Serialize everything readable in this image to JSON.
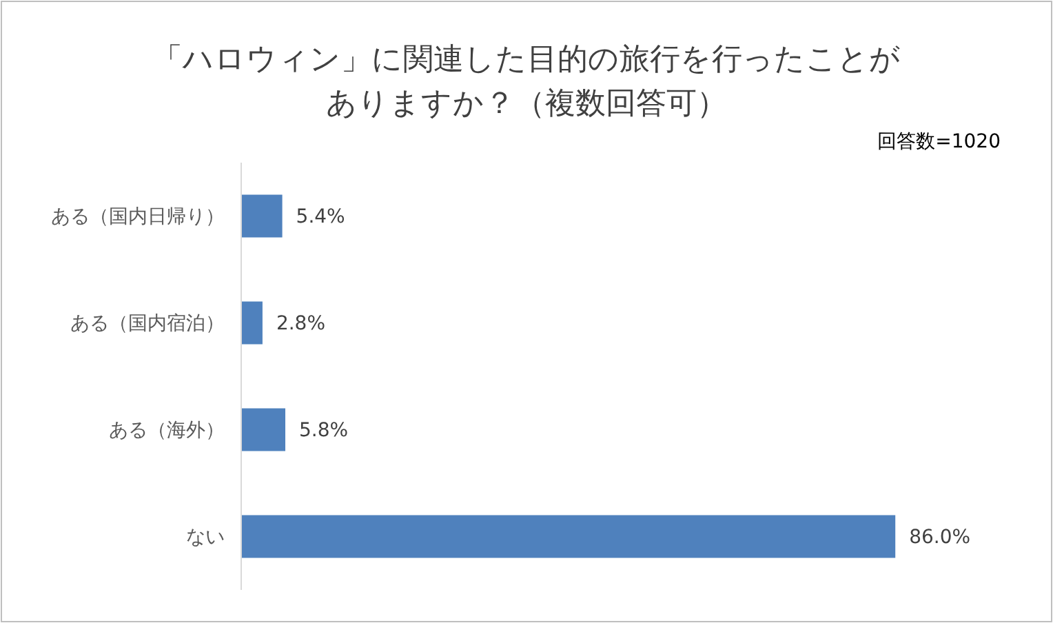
{
  "chart_data": {
    "type": "bar",
    "orientation": "horizontal",
    "title": "「ハロウィン」に関連した目的の旅行を行ったことがありますか？（複数回答可）",
    "categories": [
      "ある（国内日帰り）",
      "ある（国内宿泊）",
      "ある（海外）",
      "ない"
    ],
    "values": [
      5.4,
      2.8,
      5.8,
      86.0
    ],
    "value_labels": [
      "5.4%",
      "2.8%",
      "5.8%",
      "86.0%"
    ],
    "color": "#4f81bd",
    "annotations": [
      "回答数=1020"
    ]
  }
}
